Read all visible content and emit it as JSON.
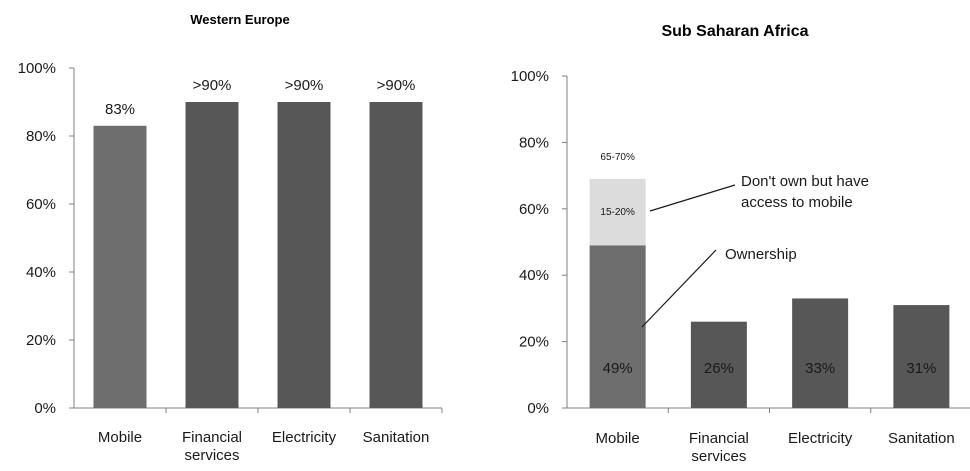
{
  "chart_data": [
    {
      "type": "bar",
      "title": "Western Europe",
      "ylim": [
        0,
        100
      ],
      "yticks": [
        "0%",
        "20%",
        "40%",
        "60%",
        "80%",
        "100%"
      ],
      "categories": [
        [
          "Mobile"
        ],
        [
          "Financial",
          "services"
        ],
        [
          "Electricity"
        ],
        [
          "Sanitation"
        ]
      ],
      "values": [
        83,
        90,
        90,
        90
      ],
      "data_labels": [
        "83%",
        ">90%",
        ">90%",
        ">90%"
      ],
      "colors": [
        "#6e6e6e",
        "#575757",
        "#575757",
        "#575757"
      ],
      "grid": false
    },
    {
      "type": "bar",
      "title": "Sub Saharan Africa",
      "ylim": [
        0,
        100
      ],
      "yticks": [
        "0%",
        "20%",
        "40%",
        "60%",
        "80%",
        "100%"
      ],
      "categories": [
        [
          "Mobile"
        ],
        [
          "Financial",
          "services"
        ],
        [
          "Electricity"
        ],
        [
          "Sanitation"
        ]
      ],
      "values": [
        49,
        26,
        33,
        31
      ],
      "data_labels": [
        "49%",
        "26%",
        "33%",
        "31%"
      ],
      "colors": [
        "#6e6e6e",
        "#575757",
        "#575757",
        "#575757"
      ],
      "stack_on_first": {
        "value": 20,
        "color": "#dcdcdc",
        "label": "15-20%",
        "total_label": "65-70%"
      },
      "annotations": [
        {
          "lines": [
            "Don't own but have",
            "access to mobile"
          ]
        },
        {
          "lines": [
            "Ownership"
          ]
        }
      ],
      "grid": false
    }
  ]
}
